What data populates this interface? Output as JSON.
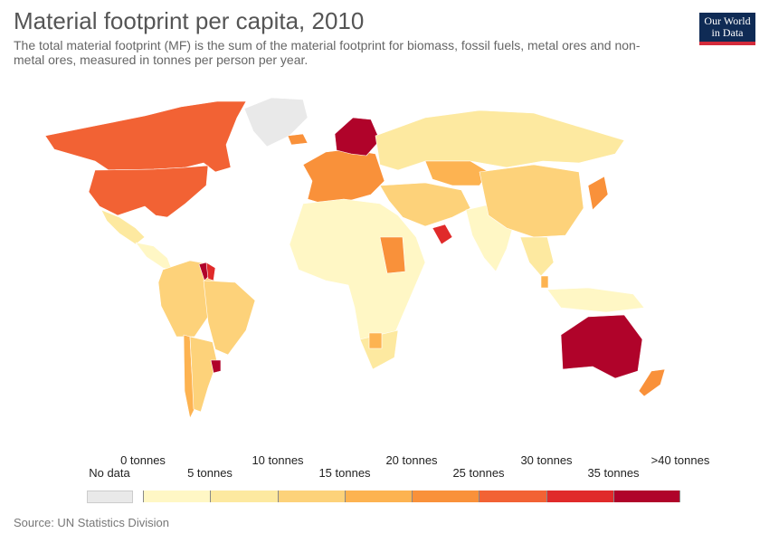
{
  "header": {
    "title": "Material footprint per capita, 2010",
    "subtitle": "The total material footprint (MF) is the sum of the material footprint for biomass, fossil fuels, metal ores and non-metal ores, measured in tonnes per person per year."
  },
  "logo": {
    "line1": "Our World",
    "line2": "in Data"
  },
  "colors": {
    "nodata": "#e9e9e9",
    "bins": [
      "#fff7c5",
      "#fde9a0",
      "#fdd27a",
      "#fdb351",
      "#f9913a",
      "#f26234",
      "#e02a2a",
      "#b0032a"
    ]
  },
  "legend": {
    "nodata_label": "No data",
    "ticks": [
      "0 tonnes",
      "5 tonnes",
      "10 tonnes",
      "15 tonnes",
      "20 tonnes",
      "25 tonnes",
      "30 tonnes",
      "35 tonnes",
      ">40 tonnes"
    ]
  },
  "regions": [
    {
      "name": "Canada",
      "bin": 5
    },
    {
      "name": "United States",
      "bin": 5
    },
    {
      "name": "Greenland",
      "bin": -1
    },
    {
      "name": "Mexico",
      "bin": 1
    },
    {
      "name": "Central America",
      "bin": 0
    },
    {
      "name": "Guyana",
      "bin": 7
    },
    {
      "name": "Suriname",
      "bin": 6
    },
    {
      "name": "South America North",
      "bin": 2
    },
    {
      "name": "Brazil",
      "bin": 2
    },
    {
      "name": "Chile",
      "bin": 3
    },
    {
      "name": "Argentina",
      "bin": 2
    },
    {
      "name": "Uruguay",
      "bin": 7
    },
    {
      "name": "Western Europe",
      "bin": 4
    },
    {
      "name": "Scandinavia",
      "bin": 7
    },
    {
      "name": "Russia",
      "bin": 1
    },
    {
      "name": "Kazakhstan",
      "bin": 3
    },
    {
      "name": "Middle East",
      "bin": 2
    },
    {
      "name": "Gulf States",
      "bin": 6
    },
    {
      "name": "Africa",
      "bin": 0
    },
    {
      "name": "Sudan region",
      "bin": -1
    },
    {
      "name": "Southern Africa",
      "bin": 1
    },
    {
      "name": "Botswana",
      "bin": 3
    },
    {
      "name": "India",
      "bin": 0
    },
    {
      "name": "China",
      "bin": 2
    },
    {
      "name": "Japan",
      "bin": 4
    },
    {
      "name": "Southeast Asia",
      "bin": 1
    },
    {
      "name": "Malaysia",
      "bin": 3
    },
    {
      "name": "Indonesia",
      "bin": 0
    },
    {
      "name": "Australia",
      "bin": 7
    },
    {
      "name": "New Zealand",
      "bin": 4
    }
  ],
  "source": "Source: UN Statistics Division"
}
